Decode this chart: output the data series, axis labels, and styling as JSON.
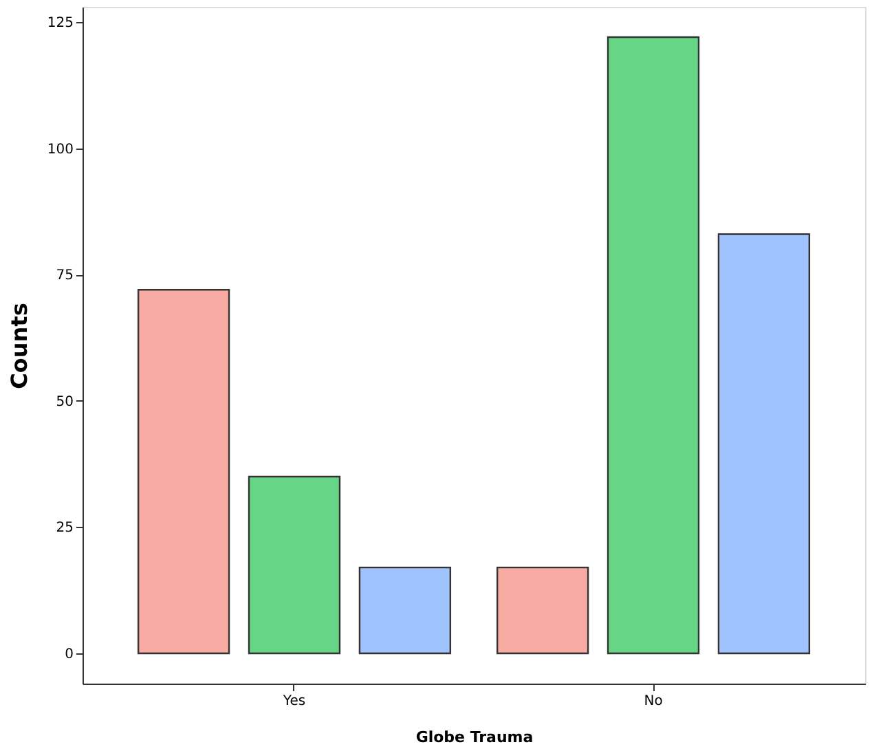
{
  "chart_data": {
    "type": "bar",
    "xlabel": "Globe Trauma",
    "ylabel": "Counts",
    "categories": [
      "Yes",
      "No"
    ],
    "series": [
      {
        "color": "#f8aba3",
        "values": [
          72,
          17
        ]
      },
      {
        "color": "#66d585",
        "values": [
          35,
          122
        ]
      },
      {
        "color": "#a1c3fd",
        "values": [
          17,
          83
        ]
      }
    ],
    "ylim": [
      -6,
      128
    ],
    "yticks": [
      0,
      25,
      50,
      75,
      100,
      125
    ],
    "grid": false,
    "legend": false
  }
}
